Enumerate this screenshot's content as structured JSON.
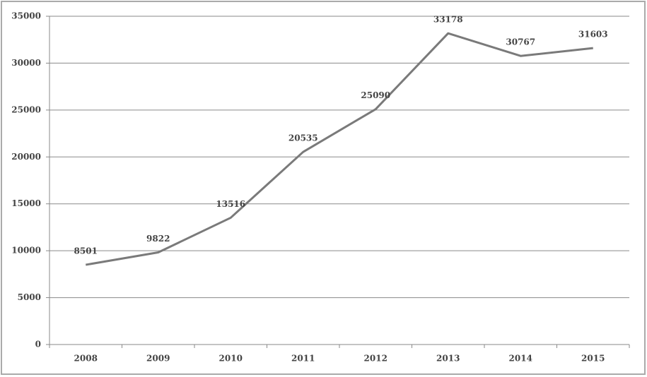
{
  "chart_data": {
    "type": "line",
    "categories": [
      "2008",
      "2009",
      "2010",
      "2011",
      "2012",
      "2013",
      "2014",
      "2015"
    ],
    "values": [
      8501,
      9822,
      13516,
      20535,
      25090,
      33178,
      30767,
      31603
    ],
    "color": "#7a7a7a",
    "ylim": [
      0,
      35000
    ],
    "yticks": [
      0,
      5000,
      10000,
      15000,
      20000,
      25000,
      30000,
      35000
    ],
    "grid": true
  }
}
